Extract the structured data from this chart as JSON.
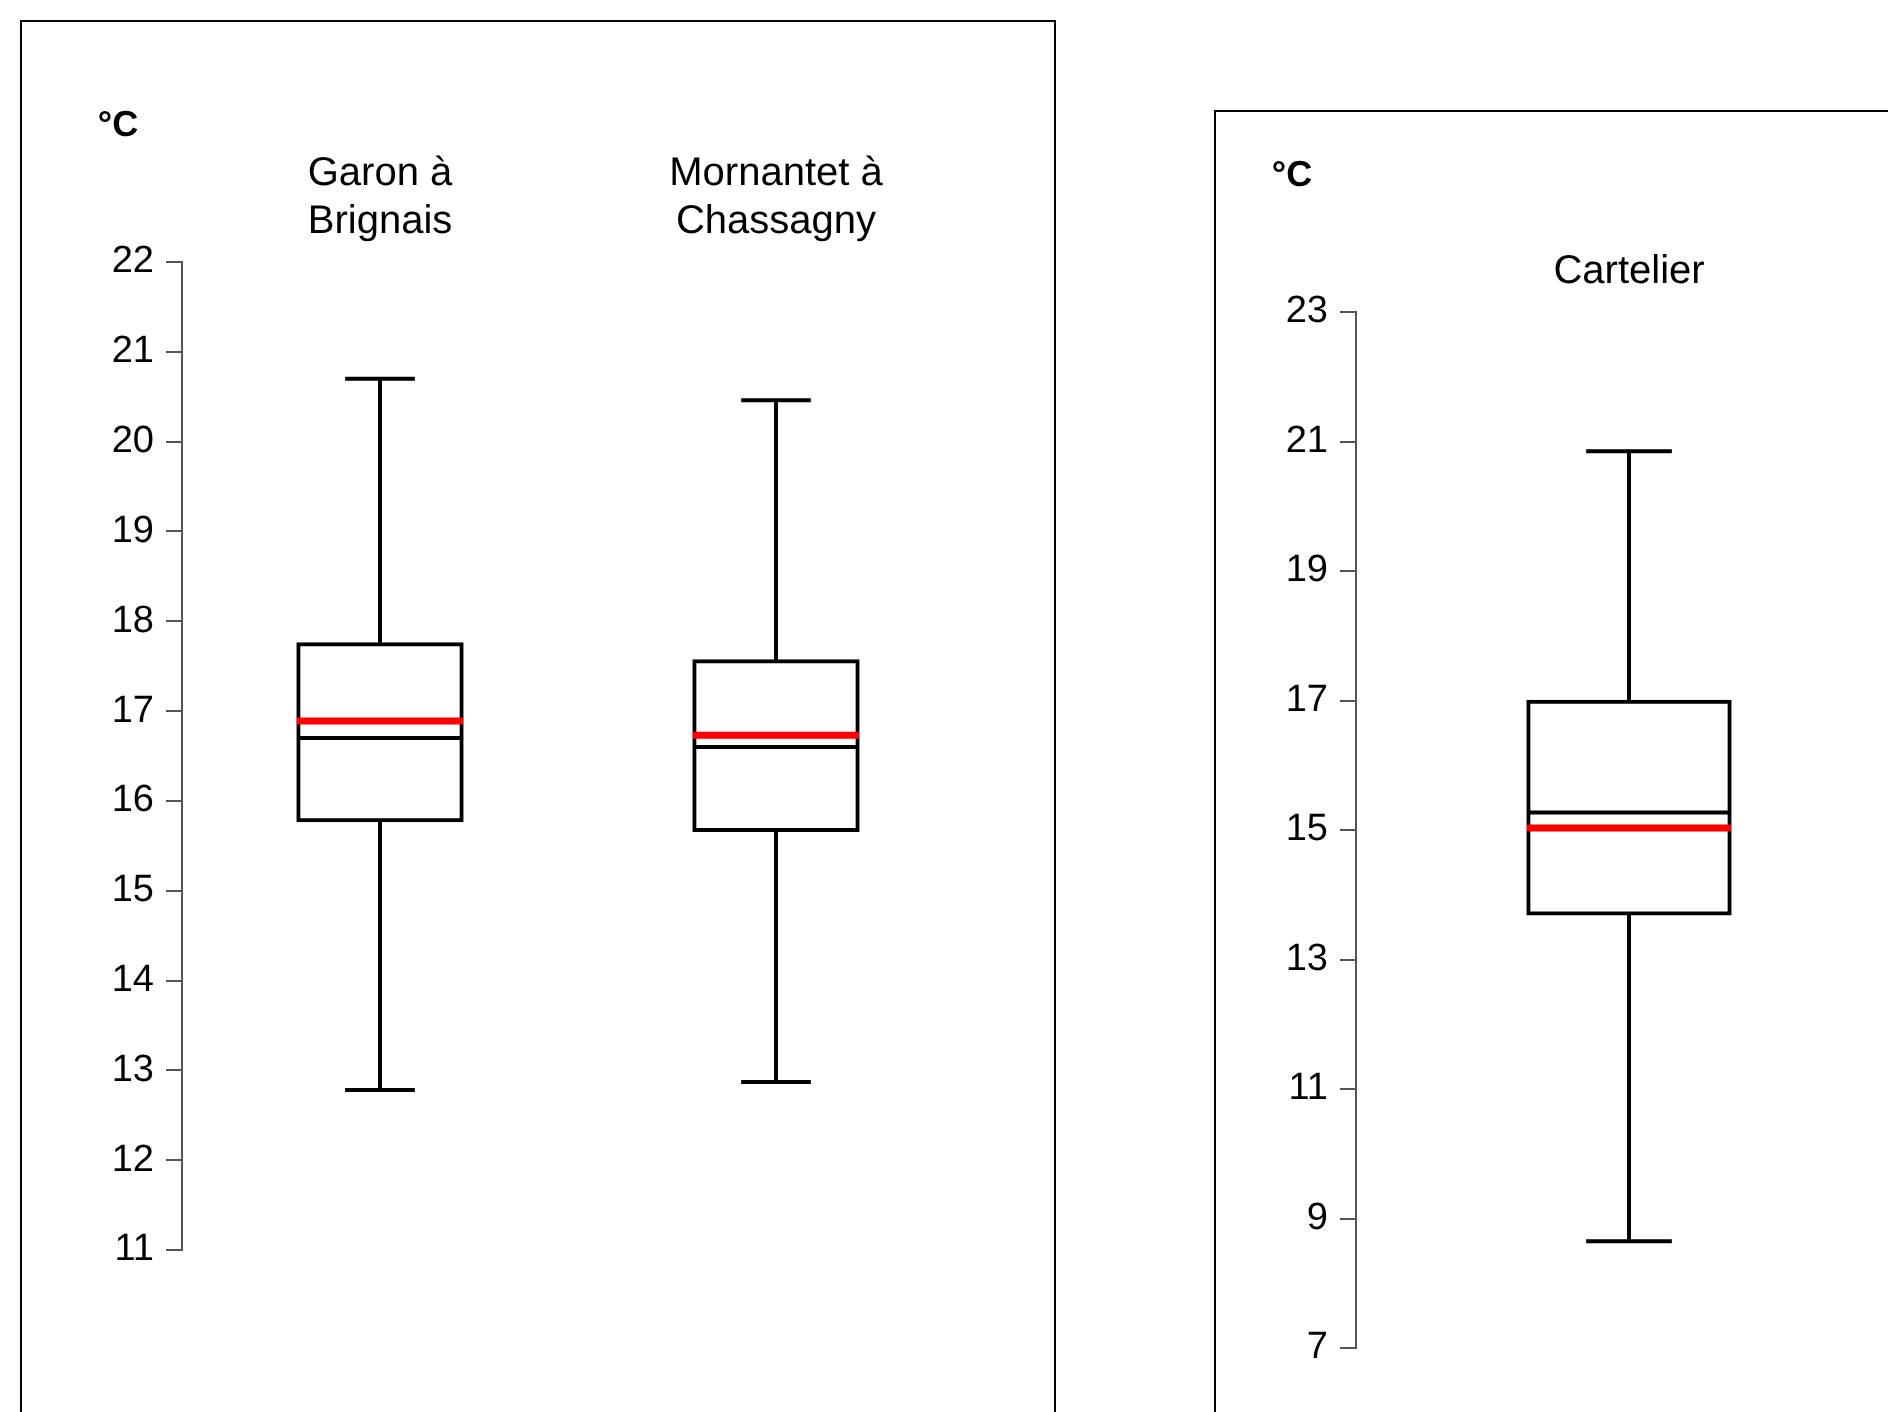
{
  "chart_data": [
    {
      "type": "box",
      "ylabel": "°C",
      "categories": [
        "Garon à Brignais",
        "Mornantet à Chassagny"
      ],
      "ylim": [
        11,
        22
      ],
      "yticks": [
        11,
        12,
        13,
        14,
        15,
        16,
        17,
        18,
        19,
        20,
        21,
        22
      ],
      "boxes": [
        {
          "low": 12.78,
          "q1": 15.77,
          "median": 16.7,
          "q3": 17.76,
          "high": 20.7,
          "mean": 16.89
        },
        {
          "low": 12.87,
          "q1": 15.66,
          "median": 16.6,
          "q3": 17.57,
          "high": 20.46,
          "mean": 16.73
        }
      ]
    },
    {
      "type": "box",
      "ylabel": "°C",
      "categories": [
        "Cartelier"
      ],
      "ylim": [
        7,
        23
      ],
      "yticks": [
        7,
        9,
        11,
        13,
        15,
        17,
        19,
        21,
        23
      ],
      "boxes": [
        {
          "low": 8.65,
          "q1": 13.69,
          "median": 15.27,
          "q3": 17.0,
          "high": 20.85,
          "mean": 15.03
        }
      ]
    }
  ]
}
